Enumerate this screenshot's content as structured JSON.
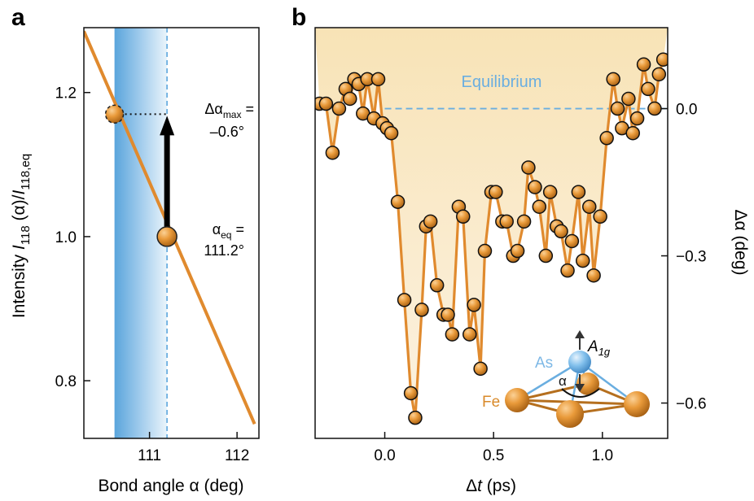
{
  "panels": {
    "a": {
      "letter": "a"
    },
    "b": {
      "letter": "b"
    }
  },
  "chart_data": [
    {
      "panel": "a",
      "type": "line",
      "xlabel": "Bond angle α (deg)",
      "ylabel_parts": [
        "Intensity ",
        "I",
        "118",
        " (α)/",
        "I",
        "118,eq"
      ],
      "x_ticks": [
        111,
        112
      ],
      "y_ticks": [
        0.8,
        1.0,
        1.2
      ],
      "y_tick_labels": [
        "0.8",
        "1.0",
        "1.2"
      ],
      "xlim": [
        110.25,
        112.25
      ],
      "ylim": [
        0.72,
        1.29
      ],
      "line": {
        "x": [
          110.25,
          112.2
        ],
        "y": [
          1.285,
          0.74
        ]
      },
      "band": {
        "x0": 110.6,
        "x1": 111.2
      },
      "eq_line_x": 111.2,
      "points": [
        {
          "name": "equilibrium",
          "x": 111.2,
          "y": 1.0
        },
        {
          "name": "maximum",
          "x": 110.6,
          "y": 1.17
        }
      ],
      "annotations": {
        "dmax_parts": [
          "Δα",
          "max",
          " ="
        ],
        "dmax_value": "–0.6°",
        "aeq_parts": [
          "α",
          "eq",
          " ="
        ],
        "aeq_value": "111.2°"
      },
      "grid": false,
      "colors": {
        "line": "#e08a2e",
        "band": "#6aaee0",
        "marker": "#e08a2e",
        "arrow": "#000000"
      }
    },
    {
      "panel": "b",
      "type": "line",
      "xlabel_parts": [
        "Δ",
        "t",
        " (ps)"
      ],
      "ylabel": "Δα (deg)",
      "x_ticks": [
        0.0,
        0.5,
        1.0
      ],
      "x_tick_labels": [
        "0.0",
        "0.5",
        "1.0"
      ],
      "y_ticks": [
        0.0,
        -0.3,
        -0.6
      ],
      "y_tick_labels": [
        "0.0",
        "−0.3",
        "−0.6"
      ],
      "xlim": [
        -0.32,
        1.3
      ],
      "ylim": [
        -0.672,
        0.165
      ],
      "equilibrium_label": "Equilibrium",
      "equilibrium_y": 0.0,
      "series": [
        {
          "x": [
            -0.3,
            -0.27,
            -0.24,
            -0.21,
            -0.18,
            -0.16,
            -0.14,
            -0.12,
            -0.1,
            -0.08,
            -0.05,
            -0.03,
            -0.01,
            0.01,
            0.03,
            0.06,
            0.09,
            0.12,
            0.14,
            0.17,
            0.19,
            0.21,
            0.24,
            0.27,
            0.29,
            0.31,
            0.34,
            0.36,
            0.39,
            0.41,
            0.44,
            0.46,
            0.49,
            0.51,
            0.54,
            0.56,
            0.59,
            0.61,
            0.64,
            0.66,
            0.69,
            0.71,
            0.74,
            0.76,
            0.79,
            0.81,
            0.84,
            0.86,
            0.89,
            0.91,
            0.94,
            0.96,
            0.99,
            1.02,
            1.05,
            1.07,
            1.09,
            1.12,
            1.14,
            1.16,
            1.19,
            1.21,
            1.24,
            1.26,
            1.28
          ],
          "y": [
            0.01,
            0.01,
            -0.09,
            0.0,
            0.04,
            0.02,
            0.06,
            0.05,
            -0.01,
            0.06,
            -0.02,
            0.06,
            -0.03,
            -0.04,
            -0.05,
            -0.19,
            -0.39,
            -0.58,
            -0.63,
            -0.41,
            -0.24,
            -0.23,
            -0.36,
            -0.42,
            -0.42,
            -0.46,
            -0.2,
            -0.22,
            -0.46,
            -0.4,
            -0.53,
            -0.29,
            -0.17,
            -0.17,
            -0.23,
            -0.23,
            -0.3,
            -0.29,
            -0.23,
            -0.12,
            -0.16,
            -0.2,
            -0.3,
            -0.17,
            -0.24,
            -0.25,
            -0.33,
            -0.27,
            -0.17,
            -0.31,
            -0.2,
            -0.34,
            -0.22,
            -0.06,
            0.06,
            0.0,
            -0.04,
            0.02,
            -0.05,
            -0.02,
            0.09,
            0.04,
            0.0,
            0.07,
            0.1
          ]
        }
      ],
      "inset": {
        "labels": {
          "as": "As",
          "fe": "Fe",
          "alpha": "α",
          "a1g_main": "A",
          "a1g_sub": "1g"
        }
      },
      "grid": false,
      "colors": {
        "line": "#e08a2e",
        "fill_top": "#f7e4b8",
        "marker": "#e08a2e",
        "equilibrium": "#6aaee0",
        "as_atom": "#7db8e6",
        "fe_atom": "#d98a2a"
      }
    }
  ]
}
